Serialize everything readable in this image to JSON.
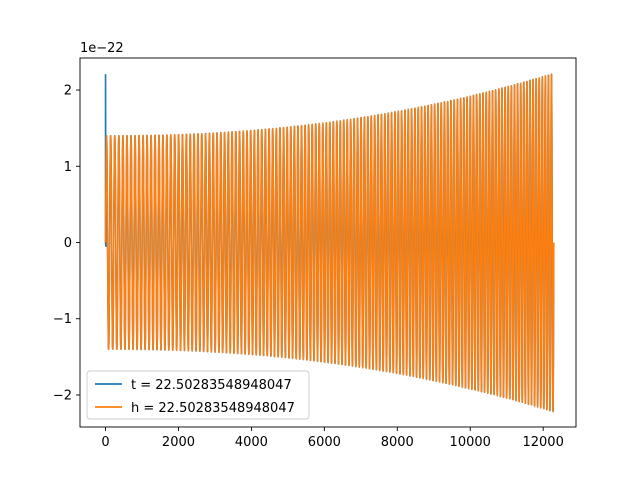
{
  "chart_data": {
    "type": "line",
    "title": "",
    "xlabel": "",
    "ylabel": "",
    "y_offset_label": "1e−22",
    "xlim": [
      -700,
      12900
    ],
    "ylim": [
      -2.42,
      2.42
    ],
    "grid": false,
    "legend_placement": "lower-left",
    "x_ticks": [
      {
        "value": 0,
        "label": "0"
      },
      {
        "value": 2000,
        "label": "2000"
      },
      {
        "value": 4000,
        "label": "4000"
      },
      {
        "value": 6000,
        "label": "6000"
      },
      {
        "value": 8000,
        "label": "8000"
      },
      {
        "value": 10000,
        "label": "10000"
      },
      {
        "value": 12000,
        "label": "12000"
      }
    ],
    "y_ticks": [
      {
        "value": -2,
        "label": "−2"
      },
      {
        "value": -1,
        "label": "−1"
      },
      {
        "value": 0,
        "label": "0"
      },
      {
        "value": 1,
        "label": "1"
      },
      {
        "value": 2,
        "label": "2"
      }
    ],
    "series": [
      {
        "name": "t = 22.50283548948047",
        "color": "#1f77b4",
        "x_range": [
          0,
          12290
        ],
        "initial_spike": 2.2,
        "amplitude_start": 1.4,
        "amplitude_end": 2.22,
        "cycles": 128
      },
      {
        "name": "h = 22.50283548948047",
        "color": "#ff7f0e",
        "x_range": [
          0,
          12290
        ],
        "amplitude_start": 1.4,
        "amplitude_end": 2.22,
        "cycles": 128
      }
    ]
  }
}
